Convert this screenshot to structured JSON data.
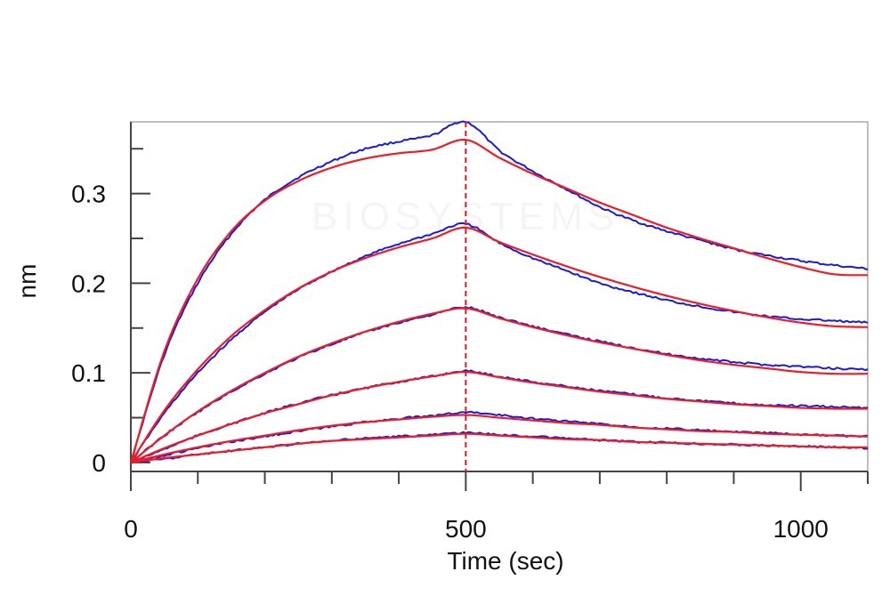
{
  "chart_data": {
    "type": "line",
    "title": "",
    "xlabel": "Time (sec)",
    "ylabel": "nm",
    "xlim": [
      0,
      1100
    ],
    "ylim": [
      -0.01,
      0.38
    ],
    "x_ticks": [
      0,
      500,
      1000
    ],
    "x_tick_labels": [
      "0",
      "500",
      "1000"
    ],
    "y_ticks": [
      0,
      0.1,
      0.2,
      0.3
    ],
    "y_tick_labels": [
      "0",
      "0.1",
      "0.2",
      "0.3"
    ],
    "grid": false,
    "legend": "none",
    "vertical_line": {
      "x": 500,
      "style": "dashed",
      "color": "#e8121e"
    },
    "watermark": "BIOSYSTEMS",
    "series_observed": [
      {
        "x": [
          0,
          50,
          100,
          150,
          200,
          250,
          300,
          350,
          400,
          450,
          500,
          550,
          600,
          650,
          700,
          750,
          800,
          850,
          900,
          950,
          1000,
          1050,
          1100
        ],
        "y": [
          0,
          0.12,
          0.2,
          0.255,
          0.293,
          0.318,
          0.336,
          0.35,
          0.358,
          0.365,
          0.38,
          0.348,
          0.325,
          0.305,
          0.285,
          0.27,
          0.258,
          0.248,
          0.238,
          0.231,
          0.225,
          0.22,
          0.216
        ]
      },
      {
        "x": [
          0,
          50,
          100,
          150,
          200,
          250,
          300,
          350,
          400,
          450,
          500,
          550,
          600,
          650,
          700,
          750,
          800,
          850,
          900,
          950,
          1000,
          1050,
          1100
        ],
        "y": [
          0,
          0.055,
          0.1,
          0.137,
          0.168,
          0.193,
          0.213,
          0.23,
          0.244,
          0.255,
          0.266,
          0.245,
          0.228,
          0.214,
          0.2,
          0.19,
          0.181,
          0.174,
          0.168,
          0.163,
          0.16,
          0.158,
          0.156
        ]
      },
      {
        "x": [
          0,
          50,
          100,
          150,
          200,
          250,
          300,
          350,
          400,
          450,
          500,
          550,
          600,
          650,
          700,
          750,
          800,
          850,
          900,
          950,
          1000,
          1050,
          1100
        ],
        "y": [
          0,
          0.03,
          0.056,
          0.079,
          0.099,
          0.117,
          0.132,
          0.145,
          0.156,
          0.165,
          0.173,
          0.162,
          0.152,
          0.143,
          0.135,
          0.128,
          0.121,
          0.116,
          0.112,
          0.109,
          0.107,
          0.105,
          0.104
        ]
      },
      {
        "x": [
          0,
          50,
          100,
          150,
          200,
          250,
          300,
          350,
          400,
          450,
          500,
          550,
          600,
          650,
          700,
          750,
          800,
          850,
          900,
          950,
          1000,
          1050,
          1100
        ],
        "y": [
          0,
          0.015,
          0.03,
          0.043,
          0.055,
          0.066,
          0.075,
          0.083,
          0.09,
          0.096,
          0.102,
          0.096,
          0.09,
          0.085,
          0.08,
          0.076,
          0.072,
          0.069,
          0.066,
          0.064,
          0.063,
          0.062,
          0.061
        ]
      },
      {
        "x": [
          0,
          50,
          100,
          150,
          200,
          250,
          300,
          350,
          400,
          450,
          500,
          550,
          600,
          650,
          700,
          750,
          800,
          850,
          900,
          950,
          1000,
          1050,
          1100
        ],
        "y": [
          0,
          0.008,
          0.016,
          0.023,
          0.029,
          0.035,
          0.04,
          0.045,
          0.049,
          0.052,
          0.056,
          0.053,
          0.049,
          0.046,
          0.043,
          0.04,
          0.038,
          0.036,
          0.034,
          0.033,
          0.031,
          0.03,
          0.029
        ]
      },
      {
        "x": [
          0,
          50,
          100,
          150,
          200,
          250,
          300,
          350,
          400,
          450,
          500,
          550,
          600,
          650,
          700,
          750,
          800,
          850,
          900,
          950,
          1000,
          1050,
          1100
        ],
        "y": [
          0,
          0.004,
          0.009,
          0.013,
          0.017,
          0.021,
          0.024,
          0.027,
          0.029,
          0.031,
          0.033,
          0.031,
          0.029,
          0.027,
          0.025,
          0.023,
          0.022,
          0.021,
          0.02,
          0.019,
          0.018,
          0.017,
          0.016
        ]
      }
    ],
    "series_fit": [
      {
        "x": [
          0,
          50,
          100,
          150,
          200,
          250,
          300,
          350,
          400,
          450,
          500,
          550,
          600,
          650,
          700,
          750,
          800,
          850,
          900,
          950,
          1000,
          1050,
          1100
        ],
        "y": [
          0,
          0.124,
          0.205,
          0.258,
          0.292,
          0.314,
          0.329,
          0.339,
          0.345,
          0.349,
          0.36,
          0.34,
          0.322,
          0.306,
          0.29,
          0.276,
          0.262,
          0.25,
          0.239,
          0.228,
          0.218,
          0.21,
          0.209
        ]
      },
      {
        "x": [
          0,
          50,
          100,
          150,
          200,
          250,
          300,
          350,
          400,
          450,
          500,
          550,
          600,
          650,
          700,
          750,
          800,
          850,
          900,
          950,
          1000,
          1050,
          1100
        ],
        "y": [
          0,
          0.058,
          0.104,
          0.141,
          0.17,
          0.194,
          0.213,
          0.228,
          0.24,
          0.25,
          0.262,
          0.246,
          0.232,
          0.219,
          0.207,
          0.196,
          0.186,
          0.177,
          0.169,
          0.162,
          0.156,
          0.152,
          0.151
        ]
      },
      {
        "x": [
          0,
          50,
          100,
          150,
          200,
          250,
          300,
          350,
          400,
          450,
          500,
          550,
          600,
          650,
          700,
          750,
          800,
          850,
          900,
          950,
          1000,
          1050,
          1100
        ],
        "y": [
          0,
          0.03,
          0.057,
          0.08,
          0.1,
          0.118,
          0.133,
          0.146,
          0.157,
          0.166,
          0.172,
          0.161,
          0.151,
          0.142,
          0.134,
          0.127,
          0.12,
          0.114,
          0.109,
          0.105,
          0.101,
          0.099,
          0.099
        ]
      },
      {
        "x": [
          0,
          50,
          100,
          150,
          200,
          250,
          300,
          350,
          400,
          450,
          500,
          550,
          600,
          650,
          700,
          750,
          800,
          850,
          900,
          950,
          1000,
          1050,
          1100
        ],
        "y": [
          0,
          0.016,
          0.03,
          0.043,
          0.055,
          0.065,
          0.075,
          0.083,
          0.09,
          0.096,
          0.101,
          0.095,
          0.089,
          0.084,
          0.079,
          0.075,
          0.071,
          0.068,
          0.065,
          0.063,
          0.061,
          0.06,
          0.06
        ]
      },
      {
        "x": [
          0,
          50,
          100,
          150,
          200,
          250,
          300,
          350,
          400,
          450,
          500,
          550,
          600,
          650,
          700,
          750,
          800,
          850,
          900,
          950,
          1000,
          1050,
          1100
        ],
        "y": [
          0,
          0.009,
          0.017,
          0.024,
          0.03,
          0.036,
          0.041,
          0.045,
          0.048,
          0.051,
          0.053,
          0.05,
          0.047,
          0.044,
          0.042,
          0.039,
          0.037,
          0.035,
          0.034,
          0.032,
          0.031,
          0.03,
          0.029
        ]
      },
      {
        "x": [
          0,
          50,
          100,
          150,
          200,
          250,
          300,
          350,
          400,
          450,
          500,
          550,
          600,
          650,
          700,
          750,
          800,
          850,
          900,
          950,
          1000,
          1050,
          1100
        ],
        "y": [
          0,
          0.005,
          0.009,
          0.013,
          0.017,
          0.021,
          0.024,
          0.026,
          0.028,
          0.03,
          0.032,
          0.03,
          0.028,
          0.026,
          0.025,
          0.023,
          0.022,
          0.021,
          0.02,
          0.019,
          0.018,
          0.017,
          0.017
        ]
      }
    ],
    "colors": {
      "observed": "#1a1adb",
      "fit": "#ee1c25",
      "axis": "#444444",
      "frame": "#aaaaaa"
    }
  }
}
